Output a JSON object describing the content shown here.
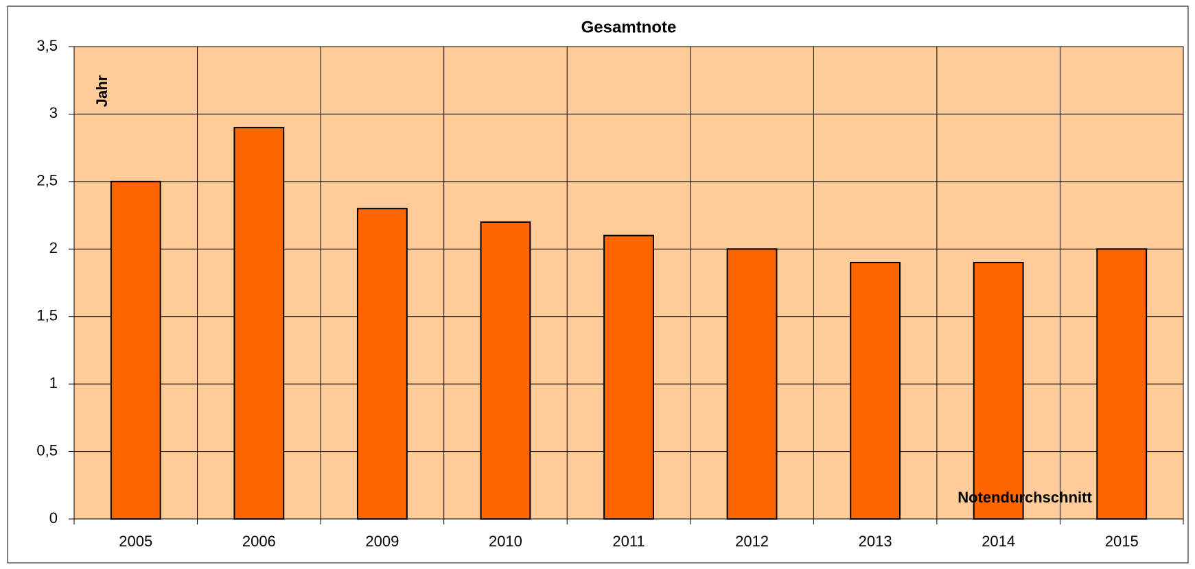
{
  "chart_data": {
    "type": "bar",
    "title": "Gesamtnote",
    "categories": [
      "2005",
      "2006",
      "2009",
      "2010",
      "2011",
      "2012",
      "2013",
      "2014",
      "2015"
    ],
    "values": [
      2.5,
      2.9,
      2.3,
      2.2,
      2.1,
      2.0,
      1.9,
      1.9,
      2.0
    ],
    "color": "#ff6600",
    "ylim": [
      0,
      3.5
    ],
    "yticks": [
      0,
      {
        "value": 0.5,
        "label": "0,5"
      },
      1,
      {
        "value": 1.5,
        "label": "1,5"
      },
      2,
      {
        "value": 2.5,
        "label": "2,5"
      },
      3,
      {
        "value": 3.5,
        "label": "3,5"
      }
    ],
    "grid": true,
    "annotations": [
      "Jahr",
      "Notendurchschnitt"
    ]
  }
}
